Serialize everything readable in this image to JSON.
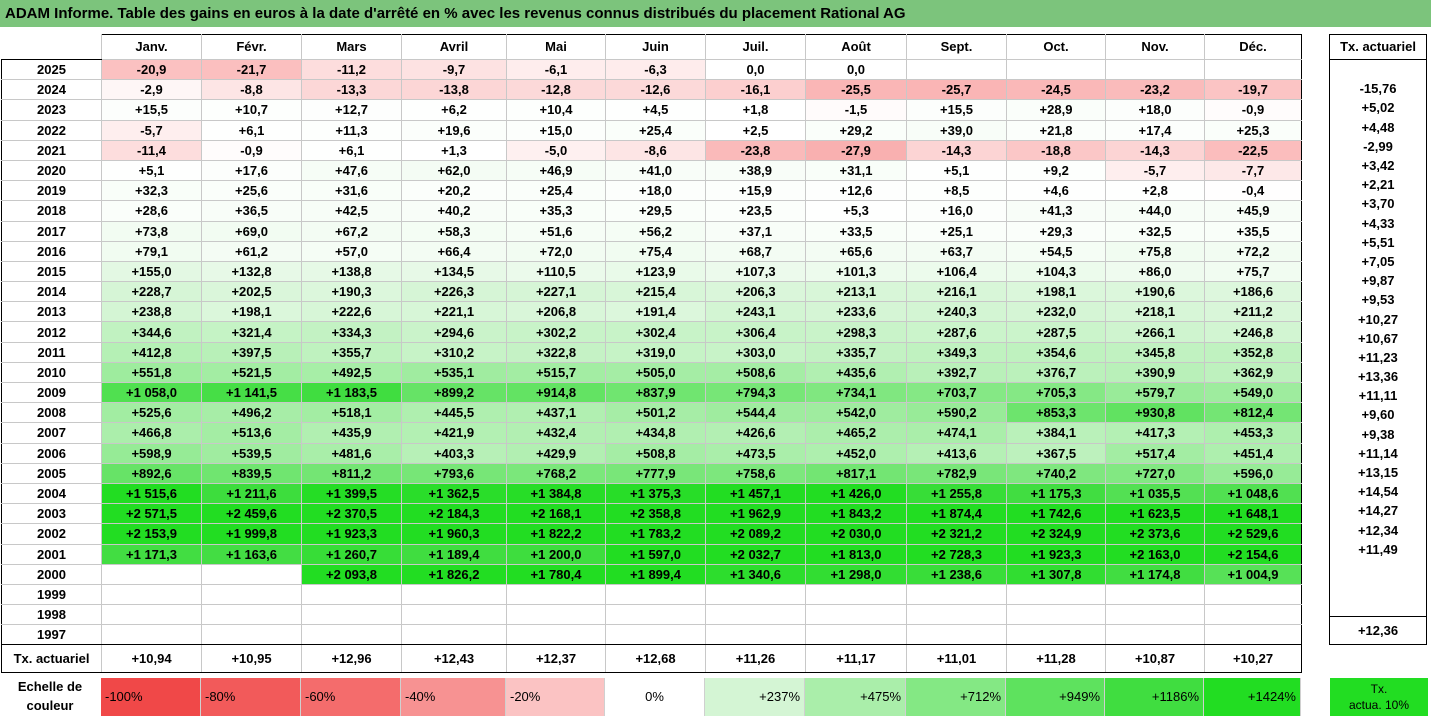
{
  "title": "ADAM Informe. Table des gains en euros à la date d'arrêté en % avec les revenus connus distribués du placement Rational AG",
  "months": [
    "Janv.",
    "Févr.",
    "Mars",
    "Avril",
    "Mai",
    "Juin",
    "Juil.",
    "Août",
    "Sept.",
    "Oct.",
    "Nov.",
    "Déc."
  ],
  "actuarial_header": "Tx. actuariel",
  "rows": [
    {
      "year": "2025",
      "values": [
        "-20,9",
        "-21,7",
        "-11,2",
        "-9,7",
        "-6,1",
        "-6,3",
        "0,0",
        "0,0",
        "",
        "",
        "",
        ""
      ],
      "actuarial": ""
    },
    {
      "year": "2024",
      "values": [
        "-2,9",
        "-8,8",
        "-13,3",
        "-13,8",
        "-12,8",
        "-12,6",
        "-16,1",
        "-25,5",
        "-25,7",
        "-24,5",
        "-23,2",
        "-19,7"
      ],
      "actuarial": "-15,76"
    },
    {
      "year": "2023",
      "values": [
        "+15,5",
        "+10,7",
        "+12,7",
        "+6,2",
        "+10,4",
        "+4,5",
        "+1,8",
        "-1,5",
        "+15,5",
        "+28,9",
        "+18,0",
        "-0,9"
      ],
      "actuarial": "+5,02"
    },
    {
      "year": "2022",
      "values": [
        "-5,7",
        "+6,1",
        "+11,3",
        "+19,6",
        "+15,0",
        "+25,4",
        "+2,5",
        "+29,2",
        "+39,0",
        "+21,8",
        "+17,4",
        "+25,3"
      ],
      "actuarial": "+4,48"
    },
    {
      "year": "2021",
      "values": [
        "-11,4",
        "-0,9",
        "+6,1",
        "+1,3",
        "-5,0",
        "-8,6",
        "-23,8",
        "-27,9",
        "-14,3",
        "-18,8",
        "-14,3",
        "-22,5"
      ],
      "actuarial": "-2,99"
    },
    {
      "year": "2020",
      "values": [
        "+5,1",
        "+17,6",
        "+47,6",
        "+62,0",
        "+46,9",
        "+41,0",
        "+38,9",
        "+31,1",
        "+5,1",
        "+9,2",
        "-5,7",
        "-7,7"
      ],
      "actuarial": "+3,42"
    },
    {
      "year": "2019",
      "values": [
        "+32,3",
        "+25,6",
        "+31,6",
        "+20,2",
        "+25,4",
        "+18,0",
        "+15,9",
        "+12,6",
        "+8,5",
        "+4,6",
        "+2,8",
        "-0,4"
      ],
      "actuarial": "+2,21"
    },
    {
      "year": "2018",
      "values": [
        "+28,6",
        "+36,5",
        "+42,5",
        "+40,2",
        "+35,3",
        "+29,5",
        "+23,5",
        "+5,3",
        "+16,0",
        "+41,3",
        "+44,0",
        "+45,9"
      ],
      "actuarial": "+3,70"
    },
    {
      "year": "2017",
      "values": [
        "+73,8",
        "+69,0",
        "+67,2",
        "+58,3",
        "+51,6",
        "+56,2",
        "+37,1",
        "+33,5",
        "+25,1",
        "+29,3",
        "+32,5",
        "+35,5"
      ],
      "actuarial": "+4,33"
    },
    {
      "year": "2016",
      "values": [
        "+79,1",
        "+61,2",
        "+57,0",
        "+66,4",
        "+72,0",
        "+75,4",
        "+68,7",
        "+65,6",
        "+63,7",
        "+54,5",
        "+75,8",
        "+72,2"
      ],
      "actuarial": "+5,51"
    },
    {
      "year": "2015",
      "values": [
        "+155,0",
        "+132,8",
        "+138,8",
        "+134,5",
        "+110,5",
        "+123,9",
        "+107,3",
        "+101,3",
        "+106,4",
        "+104,3",
        "+86,0",
        "+75,7"
      ],
      "actuarial": "+7,05"
    },
    {
      "year": "2014",
      "values": [
        "+228,7",
        "+202,5",
        "+190,3",
        "+226,3",
        "+227,1",
        "+215,4",
        "+206,3",
        "+213,1",
        "+216,1",
        "+198,1",
        "+190,6",
        "+186,6"
      ],
      "actuarial": "+9,87"
    },
    {
      "year": "2013",
      "values": [
        "+238,8",
        "+198,1",
        "+222,6",
        "+221,1",
        "+206,8",
        "+191,4",
        "+243,1",
        "+233,6",
        "+240,3",
        "+232,0",
        "+218,1",
        "+211,2"
      ],
      "actuarial": "+9,53"
    },
    {
      "year": "2012",
      "values": [
        "+344,6",
        "+321,4",
        "+334,3",
        "+294,6",
        "+302,2",
        "+302,4",
        "+306,4",
        "+298,3",
        "+287,6",
        "+287,5",
        "+266,1",
        "+246,8"
      ],
      "actuarial": "+10,27"
    },
    {
      "year": "2011",
      "values": [
        "+412,8",
        "+397,5",
        "+355,7",
        "+310,2",
        "+322,8",
        "+319,0",
        "+303,0",
        "+335,7",
        "+349,3",
        "+354,6",
        "+345,8",
        "+352,8"
      ],
      "actuarial": "+10,67"
    },
    {
      "year": "2010",
      "values": [
        "+551,8",
        "+521,5",
        "+492,5",
        "+535,1",
        "+515,7",
        "+505,0",
        "+508,6",
        "+435,6",
        "+392,7",
        "+376,7",
        "+390,9",
        "+362,9"
      ],
      "actuarial": "+11,23"
    },
    {
      "year": "2009",
      "values": [
        "+1 058,0",
        "+1 141,5",
        "+1 183,5",
        "+899,2",
        "+914,8",
        "+837,9",
        "+794,3",
        "+734,1",
        "+703,7",
        "+705,3",
        "+579,7",
        "+549,0"
      ],
      "actuarial": "+13,36"
    },
    {
      "year": "2008",
      "values": [
        "+525,6",
        "+496,2",
        "+518,1",
        "+445,5",
        "+437,1",
        "+501,2",
        "+544,4",
        "+542,0",
        "+590,2",
        "+853,3",
        "+930,8",
        "+812,4"
      ],
      "actuarial": "+11,11"
    },
    {
      "year": "2007",
      "values": [
        "+466,8",
        "+513,6",
        "+435,9",
        "+421,9",
        "+432,4",
        "+434,8",
        "+426,6",
        "+465,2",
        "+474,1",
        "+384,1",
        "+417,3",
        "+453,3"
      ],
      "actuarial": "+9,60"
    },
    {
      "year": "2006",
      "values": [
        "+598,9",
        "+539,5",
        "+481,6",
        "+403,3",
        "+429,9",
        "+508,8",
        "+473,5",
        "+452,0",
        "+413,6",
        "+367,5",
        "+517,4",
        "+451,4"
      ],
      "actuarial": "+9,38"
    },
    {
      "year": "2005",
      "values": [
        "+892,6",
        "+839,5",
        "+811,2",
        "+793,6",
        "+768,2",
        "+777,9",
        "+758,6",
        "+817,1",
        "+782,9",
        "+740,2",
        "+727,0",
        "+596,0"
      ],
      "actuarial": "+11,14"
    },
    {
      "year": "2004",
      "values": [
        "+1 515,6",
        "+1 211,6",
        "+1 399,5",
        "+1 362,5",
        "+1 384,8",
        "+1 375,3",
        "+1 457,1",
        "+1 426,0",
        "+1 255,8",
        "+1 175,3",
        "+1 035,5",
        "+1 048,6"
      ],
      "actuarial": "+13,15"
    },
    {
      "year": "2003",
      "values": [
        "+2 571,5",
        "+2 459,6",
        "+2 370,5",
        "+2 184,3",
        "+2 168,1",
        "+2 358,8",
        "+1 962,9",
        "+1 843,2",
        "+1 874,4",
        "+1 742,6",
        "+1 623,5",
        "+1 648,1"
      ],
      "actuarial": "+14,54"
    },
    {
      "year": "2002",
      "values": [
        "+2 153,9",
        "+1 999,8",
        "+1 923,3",
        "+1 960,3",
        "+1 822,2",
        "+1 783,2",
        "+2 089,2",
        "+2 030,0",
        "+2 321,2",
        "+2 324,9",
        "+2 373,6",
        "+2 529,6"
      ],
      "actuarial": "+14,27"
    },
    {
      "year": "2001",
      "values": [
        "+1 171,3",
        "+1 163,6",
        "+1 260,7",
        "+1 189,4",
        "+1 200,0",
        "+1 597,0",
        "+2 032,7",
        "+1 813,0",
        "+2 728,3",
        "+1 923,3",
        "+2 163,0",
        "+2 154,6"
      ],
      "actuarial": "+12,34"
    },
    {
      "year": "2000",
      "values": [
        "",
        "",
        "+2 093,8",
        "+1 826,2",
        "+1 780,4",
        "+1 899,4",
        "+1 340,6",
        "+1 298,0",
        "+1 238,6",
        "+1 307,8",
        "+1 174,8",
        "+1 004,9"
      ],
      "actuarial": "+11,49"
    },
    {
      "year": "1999",
      "values": [
        "",
        "",
        "",
        "",
        "",
        "",
        "",
        "",
        "",
        "",
        "",
        ""
      ],
      "actuarial": ""
    },
    {
      "year": "1998",
      "values": [
        "",
        "",
        "",
        "",
        "",
        "",
        "",
        "",
        "",
        "",
        "",
        ""
      ],
      "actuarial": ""
    },
    {
      "year": "1997",
      "values": [
        "",
        "",
        "",
        "",
        "",
        "",
        "",
        "",
        "",
        "",
        "",
        ""
      ],
      "actuarial": ""
    }
  ],
  "footer": {
    "label": "Tx. actuariel",
    "values": [
      "+10,94",
      "+10,95",
      "+12,96",
      "+12,43",
      "+12,37",
      "+12,68",
      "+11,26",
      "+11,17",
      "+11,01",
      "+11,28",
      "+10,87",
      "+10,27"
    ],
    "actuarial": "+12,36"
  },
  "color_scale": {
    "label_line1": "Echelle de",
    "label_line2": "couleur",
    "steps": [
      {
        "label": "-100%",
        "value": -100,
        "color": "#f04848"
      },
      {
        "label": "-80%",
        "value": -80,
        "color": "#f25a5a"
      },
      {
        "label": "-60%",
        "value": -60,
        "color": "#f46c6c"
      },
      {
        "label": "-40%",
        "value": -40,
        "color": "#f79292"
      },
      {
        "label": "-20%",
        "value": -20,
        "color": "#fbc3c3"
      },
      {
        "label": "0%",
        "value": 0,
        "color": "#ffffff"
      },
      {
        "label": "+237%",
        "value": 237,
        "color": "#d4f5d4"
      },
      {
        "label": "+475%",
        "value": 475,
        "color": "#aaeeaa"
      },
      {
        "label": "+712%",
        "value": 712,
        "color": "#84e884"
      },
      {
        "label": "+949%",
        "value": 949,
        "color": "#5ee25e"
      },
      {
        "label": "+1186%",
        "value": 1186,
        "color": "#40dd40"
      },
      {
        "label": "+1424%",
        "value": 1424,
        "color": "#22dd22"
      }
    ],
    "actuarial_legend_line1": "Tx.",
    "actuarial_legend_line2": "actua. 10%",
    "actuarial_legend_color": "#22dd22"
  },
  "colors": {
    "title_bar": "#7cc47c",
    "strong_green": "#22dd22",
    "strong_red": "#f04848"
  }
}
